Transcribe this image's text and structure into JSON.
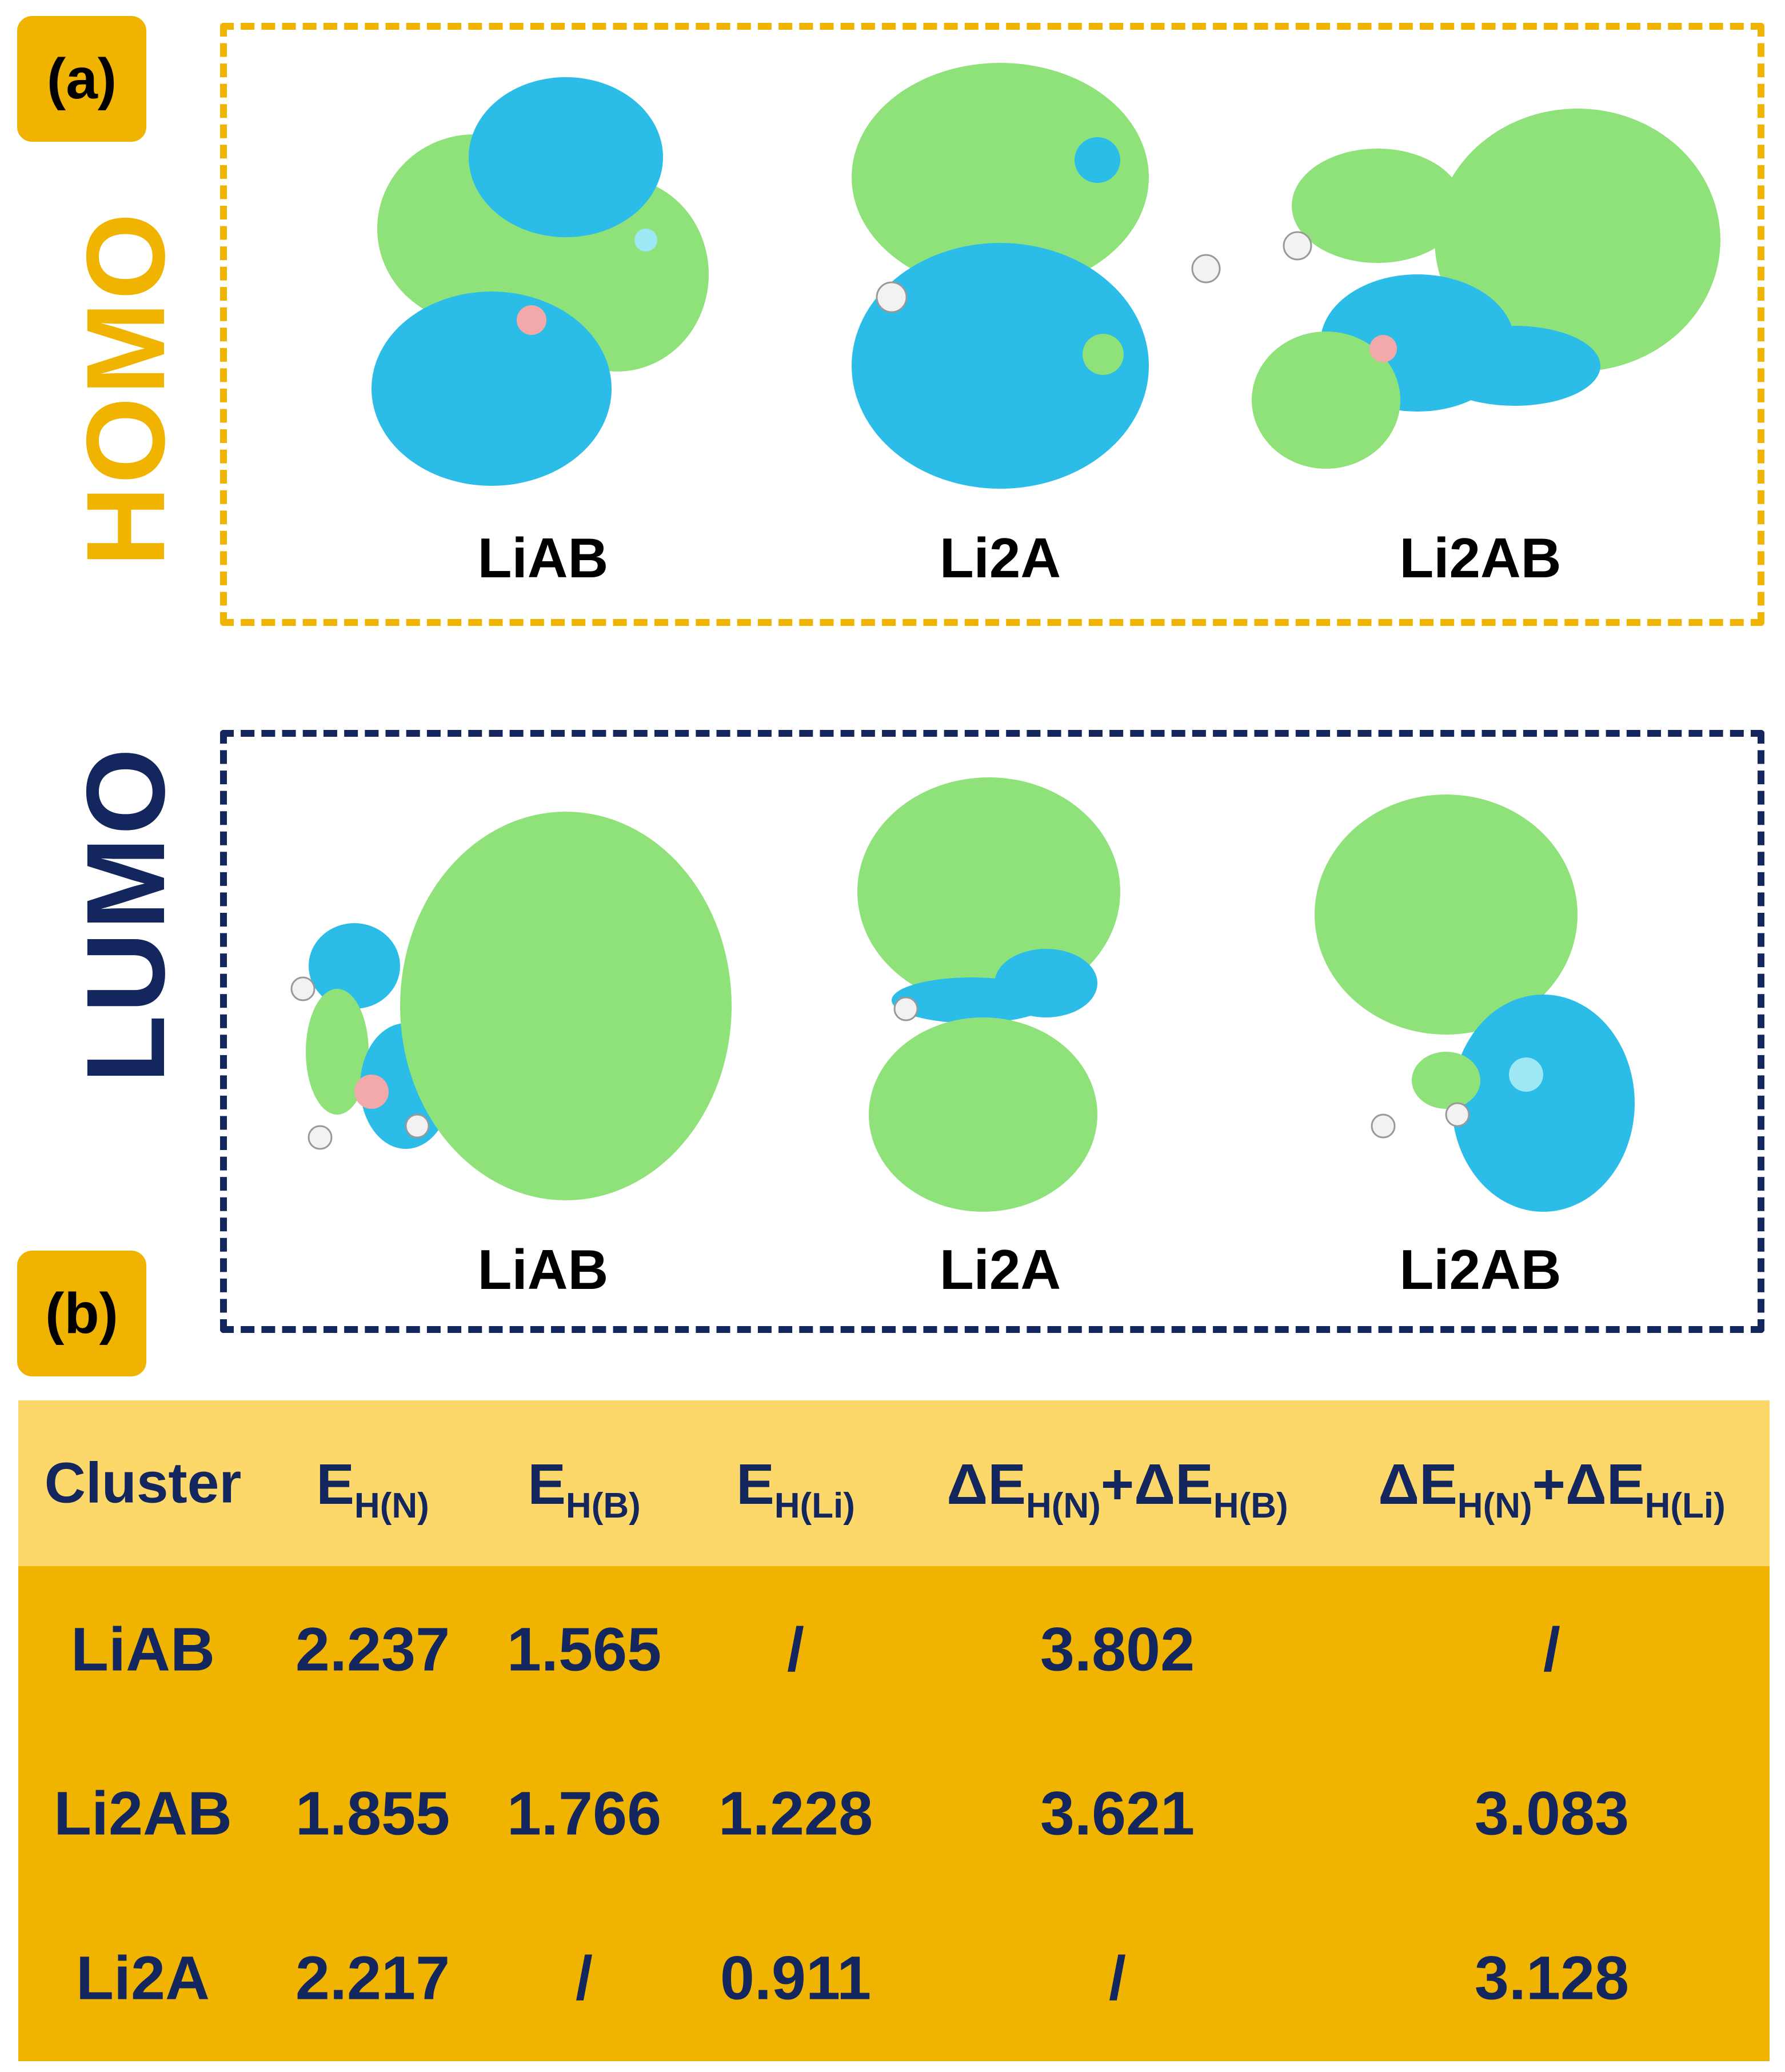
{
  "panels": {
    "a_tag": "(a)",
    "b_tag": "(b)"
  },
  "homo": {
    "side_label": "HOMO",
    "border_color": "#f0b400",
    "molecules": [
      "LiAB",
      "Li2A",
      "Li2AB"
    ]
  },
  "lumo": {
    "side_label": "LUMO",
    "border_color": "#13265e",
    "molecules": [
      "LiAB",
      "Li2A",
      "Li2AB"
    ]
  },
  "orbital_colors": {
    "positive": "#8fe27a",
    "negative": "#2bbde8"
  },
  "table": {
    "header": {
      "cluster": "Cluster",
      "c1": {
        "main": "E",
        "sub": "H(N)"
      },
      "c2": {
        "main": "E",
        "sub": "H(B)"
      },
      "c3": {
        "main": "E",
        "sub": "H(Li)"
      },
      "c4": {
        "a": "ΔE",
        "asub": "H(N)",
        "b": "+ΔE",
        "bsub": "H(B)"
      },
      "c5": {
        "a": "ΔE",
        "asub": "H(N)",
        "b": "+ΔE",
        "bsub": "H(Li)"
      }
    },
    "rows": [
      {
        "cluster": "LiAB",
        "c1": "2.237",
        "c2": "1.565",
        "c3": "/",
        "c4": "3.802",
        "c5": "/"
      },
      {
        "cluster": "Li2AB",
        "c1": "1.855",
        "c2": "1.766",
        "c3": "1.228",
        "c4": "3.621",
        "c5": "3.083"
      },
      {
        "cluster": "Li2A",
        "c1": "2.217",
        "c2": "/",
        "c3": "0.911",
        "c4": "/",
        "c5": "3.128"
      }
    ]
  }
}
